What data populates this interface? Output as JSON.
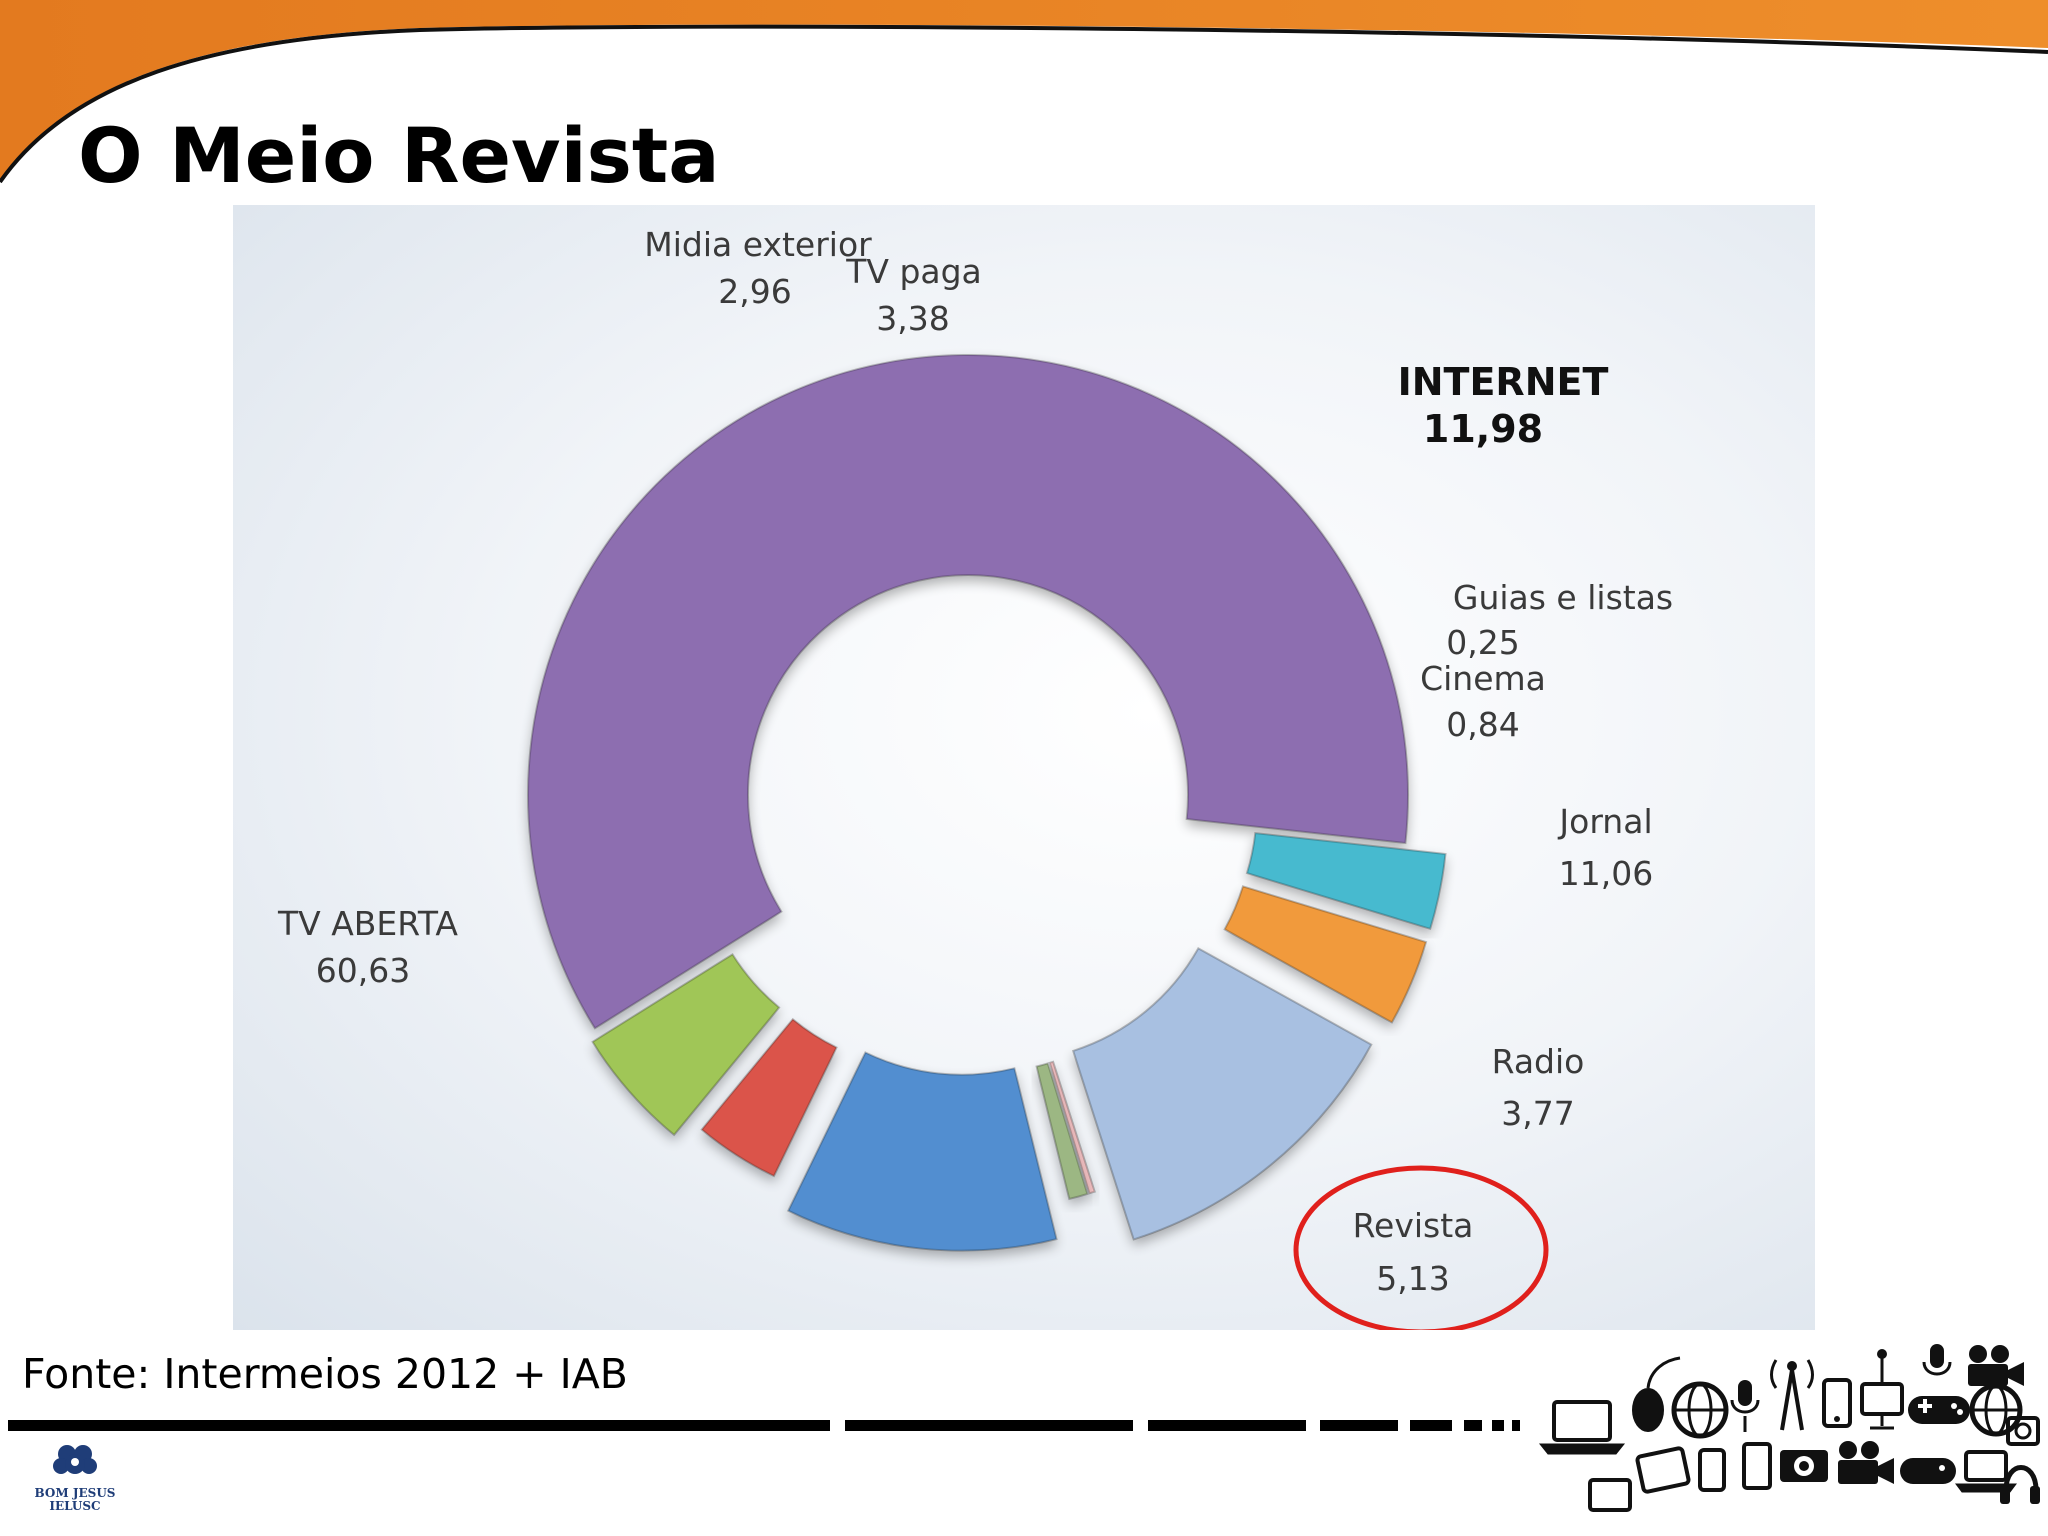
{
  "slide": {
    "title": "O Meio Revista",
    "source": "Fonte: Intermeios 2012 + IAB",
    "logo_text": "BOM JESUS\nIELUSC",
    "colors": {
      "header_orange": "#e37a1f",
      "highlight_ring": "#e0201c"
    }
  },
  "chart_data": {
    "type": "pie",
    "title": "",
    "slices": [
      {
        "label": "TV ABERTA",
        "value": 60.63,
        "display": "60,63",
        "color": "#7e5aa6"
      },
      {
        "label": "Midia exterior",
        "value": 2.96,
        "display": "2,96",
        "color": "#2fb1c9"
      },
      {
        "label": "TV paga",
        "value": 3.38,
        "display": "3,38",
        "color": "#f08c22"
      },
      {
        "label": "INTERNET",
        "value": 11.98,
        "display": "11,98",
        "color": "#9db8dd",
        "emphasis": true
      },
      {
        "label": "Guias e listas",
        "value": 0.25,
        "display": "0,25",
        "color": "#f0b7b9"
      },
      {
        "label": "Cinema",
        "value": 0.84,
        "display": "0,84",
        "color": "#8fae72"
      },
      {
        "label": "Jornal",
        "value": 11.06,
        "display": "11,06",
        "color": "#3a7fca"
      },
      {
        "label": "Radio",
        "value": 3.77,
        "display": "3,77",
        "color": "#d63c31"
      },
      {
        "label": "Revista",
        "value": 5.13,
        "display": "5,13",
        "color": "#93bf3f",
        "highlighted": true
      }
    ],
    "legend": "none"
  },
  "icons": [
    "laptop-icon",
    "mouse-icon",
    "globe-icon",
    "microphone-icon",
    "antenna-icon",
    "phone-icon",
    "tv-icon",
    "gamepad-icon",
    "camera-icon",
    "video-camera-icon",
    "headphones-icon",
    "tablet-icon"
  ]
}
